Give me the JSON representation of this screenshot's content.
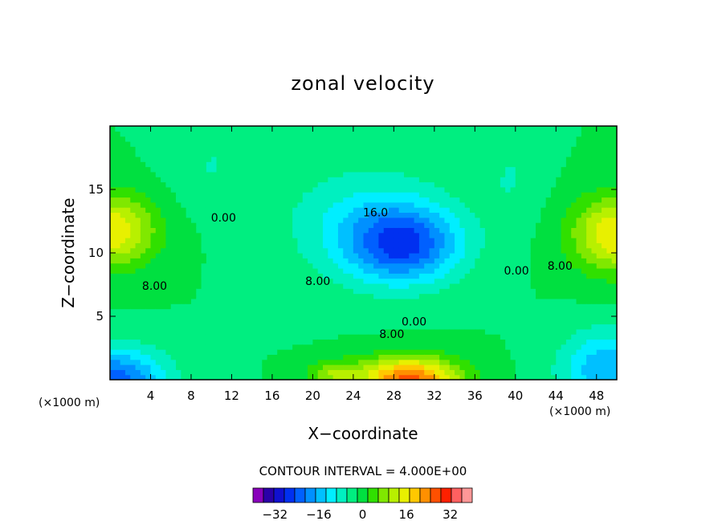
{
  "chart_data": {
    "type": "heatmap",
    "title": "zonal velocity",
    "xlabel": "X−coordinate",
    "ylabel": "Z−coordinate",
    "x_unit_left": "(×1000 m)",
    "x_unit_right": "(×1000 m)",
    "xlim": [
      0,
      50
    ],
    "ylim": [
      0,
      20
    ],
    "xticks": [
      4,
      8,
      12,
      16,
      20,
      24,
      28,
      32,
      36,
      40,
      44,
      48
    ],
    "yticks": [
      5,
      10,
      15
    ],
    "contour_interval_text": "CONTOUR INTERVAL = 4.000E+00",
    "contour_interval": 4,
    "contour_labels": [
      {
        "text": "0.00",
        "x": 11.2,
        "z": 12.8
      },
      {
        "text": "8.00",
        "x": 4.4,
        "z": 7.4
      },
      {
        "text": "16.0",
        "x": 26.2,
        "z": 13.2
      },
      {
        "text": "8.00",
        "x": 20.5,
        "z": 7.8
      },
      {
        "text": "0.00",
        "x": 40.1,
        "z": 8.6
      },
      {
        "text": "8.00",
        "x": 44.4,
        "z": 9.0
      },
      {
        "text": "0.00",
        "x": 30.0,
        "z": 4.6
      },
      {
        "text": "8.00",
        "x": 27.8,
        "z": 3.6
      }
    ],
    "colorbar": {
      "levels": [
        -40,
        -36,
        -32,
        -28,
        -24,
        -20,
        -16,
        -12,
        -8,
        -4,
        0,
        4,
        8,
        12,
        16,
        20,
        24,
        28,
        32,
        36,
        40
      ],
      "tick_labels": [
        "−32",
        "−16",
        "0",
        "16",
        "32"
      ],
      "tick_values": [
        -32,
        -16,
        0,
        16,
        32
      ],
      "colors": [
        "#8800bb",
        "#2a00a8",
        "#1010d0",
        "#0030f0",
        "#0060ff",
        "#0090ff",
        "#00c0ff",
        "#00eeff",
        "#00f0c0",
        "#00ee80",
        "#00e040",
        "#30e000",
        "#80e800",
        "#b8f000",
        "#e8f000",
        "#ffc800",
        "#ff9000",
        "#ff5000",
        "#ff2000",
        "#ff6060",
        "#ff9898"
      ]
    },
    "features": [
      {
        "kind": "max",
        "x": 0.0,
        "z": 11.8,
        "value": 20,
        "sx": 4.5,
        "sz": 2.8
      },
      {
        "kind": "max",
        "x": 50.0,
        "z": 11.5,
        "value": 20,
        "sx": 4.5,
        "sz": 3.0
      },
      {
        "kind": "max",
        "x": 29.5,
        "z": 0.0,
        "value": 30,
        "sx": 5.0,
        "sz": 1.8
      },
      {
        "kind": "max",
        "x": 22.0,
        "z": 0.6,
        "value": 10,
        "sx": 2.5,
        "sz": 1.0
      },
      {
        "kind": "min",
        "x": 29.0,
        "z": 10.7,
        "value": -22,
        "sx": 5.5,
        "sz": 3.0
      },
      {
        "kind": "min",
        "x": 25.0,
        "z": 12.5,
        "value": -8,
        "sx": 8.0,
        "sz": 4.5
      },
      {
        "kind": "min",
        "x": 0.5,
        "z": 0.0,
        "value": -22,
        "sx": 5.0,
        "sz": 2.5
      },
      {
        "kind": "min",
        "x": 49.0,
        "z": 0.8,
        "value": -16,
        "sx": 4.5,
        "sz": 3.0
      },
      {
        "kind": "min",
        "x": 10.0,
        "z": 17.0,
        "value": -4,
        "sx": 4.0,
        "sz": 3.5
      },
      {
        "kind": "min",
        "x": 39.5,
        "z": 16.0,
        "value": -4,
        "sx": 3.0,
        "sz": 4.0
      }
    ],
    "background_value": 0
  }
}
